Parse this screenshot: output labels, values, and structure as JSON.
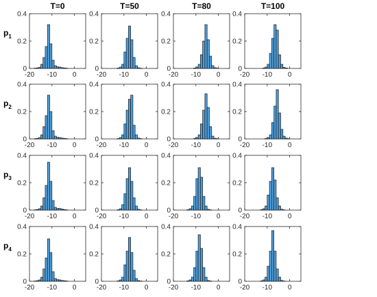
{
  "chart_data": {
    "type": "bar",
    "subtype": "histogram-grid",
    "layout_words": "4 rows x 4 columns of histogram panels",
    "bar_color": "#4f9ed9",
    "bar_edge_color": "#1a1a1a",
    "column_titles": [
      "T=0",
      "T=50",
      "T=80",
      "T=100"
    ],
    "row_labels": [
      {
        "base": "p",
        "sub": "1"
      },
      {
        "base": "p",
        "sub": "2"
      },
      {
        "base": "p",
        "sub": "3"
      },
      {
        "base": "p",
        "sub": "4"
      }
    ],
    "xlim": [
      -20,
      5
    ],
    "ylim": [
      0,
      0.4
    ],
    "xticks": [
      -20,
      -10,
      0
    ],
    "yticks": [
      0,
      0.2,
      0.4
    ],
    "ytick_labels": [
      "0",
      "0.2",
      "0.4"
    ],
    "bin_width": 1,
    "panels": [
      {
        "row": 0,
        "col": 0,
        "bins_start": -18,
        "values": [
          0.002,
          0.004,
          0.008,
          0.03,
          0.08,
          0.16,
          0.32,
          0.18,
          0.06,
          0.02,
          0.012,
          0.01,
          0.006,
          0.004,
          0.002
        ]
      },
      {
        "row": 0,
        "col": 1,
        "bins_start": -13,
        "values": [
          0.003,
          0.01,
          0.03,
          0.12,
          0.22,
          0.31,
          0.21,
          0.08,
          0.02,
          0.005,
          0.002
        ]
      },
      {
        "row": 0,
        "col": 2,
        "bins_start": -11,
        "values": [
          0.003,
          0.01,
          0.03,
          0.1,
          0.2,
          0.32,
          0.21,
          0.09,
          0.02,
          0.006,
          0.002
        ]
      },
      {
        "row": 0,
        "col": 3,
        "bins_start": -12,
        "values": [
          0.003,
          0.01,
          0.03,
          0.11,
          0.22,
          0.32,
          0.28,
          0.1,
          0.03,
          0.008,
          0.003
        ]
      },
      {
        "row": 1,
        "col": 0,
        "bins_start": -18,
        "values": [
          0.002,
          0.004,
          0.01,
          0.03,
          0.09,
          0.17,
          0.32,
          0.2,
          0.06,
          0.02,
          0.012,
          0.01,
          0.006,
          0.004,
          0.002
        ]
      },
      {
        "row": 1,
        "col": 1,
        "bins_start": -13,
        "values": [
          0.003,
          0.01,
          0.03,
          0.11,
          0.21,
          0.29,
          0.32,
          0.1,
          0.03,
          0.006,
          0.002
        ]
      },
      {
        "row": 1,
        "col": 2,
        "bins_start": -11,
        "values": [
          0.003,
          0.01,
          0.03,
          0.11,
          0.21,
          0.33,
          0.23,
          0.09,
          0.02,
          0.005,
          0.002
        ]
      },
      {
        "row": 1,
        "col": 3,
        "bins_start": -11,
        "values": [
          0.003,
          0.01,
          0.03,
          0.12,
          0.24,
          0.36,
          0.19,
          0.07,
          0.02,
          0.006,
          0.002
        ]
      },
      {
        "row": 2,
        "col": 0,
        "bins_start": -18,
        "values": [
          0.002,
          0.004,
          0.01,
          0.03,
          0.09,
          0.18,
          0.35,
          0.21,
          0.07,
          0.02,
          0.012,
          0.012,
          0.008,
          0.004,
          0.002
        ]
      },
      {
        "row": 2,
        "col": 1,
        "bins_start": -13,
        "values": [
          0.003,
          0.01,
          0.04,
          0.12,
          0.23,
          0.31,
          0.21,
          0.09,
          0.03,
          0.006,
          0.002
        ]
      },
      {
        "row": 2,
        "col": 2,
        "bins_start": -14,
        "values": [
          0.003,
          0.01,
          0.03,
          0.1,
          0.23,
          0.31,
          0.24,
          0.1,
          0.03,
          0.006,
          0.002
        ]
      },
      {
        "row": 2,
        "col": 3,
        "bins_start": -13,
        "values": [
          0.003,
          0.01,
          0.03,
          0.11,
          0.21,
          0.31,
          0.22,
          0.09,
          0.03,
          0.006,
          0.002
        ]
      },
      {
        "row": 3,
        "col": 0,
        "bins_start": -18,
        "values": [
          0.002,
          0.004,
          0.01,
          0.03,
          0.09,
          0.17,
          0.31,
          0.21,
          0.07,
          0.02,
          0.012,
          0.01,
          0.006,
          0.004,
          0.002
        ]
      },
      {
        "row": 3,
        "col": 1,
        "bins_start": -13,
        "values": [
          0.003,
          0.01,
          0.03,
          0.12,
          0.22,
          0.32,
          0.21,
          0.08,
          0.02,
          0.005,
          0.002
        ]
      },
      {
        "row": 3,
        "col": 2,
        "bins_start": -14,
        "values": [
          0.003,
          0.01,
          0.03,
          0.1,
          0.22,
          0.34,
          0.24,
          0.1,
          0.03,
          0.006,
          0.002
        ]
      },
      {
        "row": 3,
        "col": 3,
        "bins_start": -13,
        "values": [
          0.003,
          0.01,
          0.03,
          0.11,
          0.22,
          0.37,
          0.22,
          0.09,
          0.03,
          0.006,
          0.002
        ]
      }
    ]
  }
}
